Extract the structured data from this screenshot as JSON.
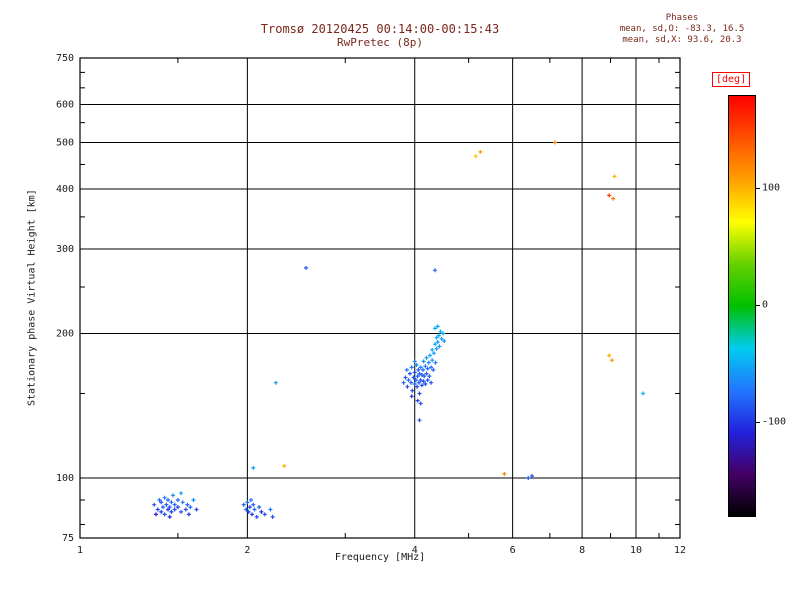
{
  "title": "Tromsø 20120425 00:14:00-00:15:43",
  "subtitle": "RwPretec (8p)",
  "phases_box": {
    "heading": "Phases",
    "line_o": "mean, sd,O: -83.3, 16.5",
    "line_x": "mean, sd,X:  93.6, 20.3"
  },
  "colorbar": {
    "label": "[deg]",
    "min": -180,
    "max": 180,
    "ticks": [
      100,
      0,
      -100
    ],
    "stops": [
      {
        "t": 0.0,
        "c": "#000000"
      },
      {
        "t": 0.1,
        "c": "#440066"
      },
      {
        "t": 0.2,
        "c": "#2222dd"
      },
      {
        "t": 0.3,
        "c": "#2277ff"
      },
      {
        "t": 0.4,
        "c": "#00ccee"
      },
      {
        "t": 0.5,
        "c": "#00c000"
      },
      {
        "t": 0.6,
        "c": "#66d000"
      },
      {
        "t": 0.7,
        "c": "#ffff00"
      },
      {
        "t": 0.8,
        "c": "#ffa000"
      },
      {
        "t": 0.9,
        "c": "#ff5000"
      },
      {
        "t": 1.0,
        "c": "#ff0000"
      }
    ]
  },
  "chart_data": {
    "type": "scatter",
    "title": "Tromsø 20120425 00:14:00-00:15:43",
    "subtitle": "RwPretec (8p)",
    "xlabel": "Frequency [MHz]",
    "ylabel": "Stationary phase Virtual Height [km]",
    "xscale": "log",
    "yscale": "log",
    "xlim": [
      1,
      12
    ],
    "ylim": [
      75,
      750
    ],
    "xticks": [
      1,
      2,
      4,
      6,
      8,
      10,
      12
    ],
    "yticks": [
      75,
      100,
      200,
      300,
      400,
      500,
      600,
      750
    ],
    "xminor": [
      1.5,
      3,
      5,
      7,
      9,
      11
    ],
    "yminor": [
      80,
      90,
      150,
      250,
      350,
      450,
      550,
      650,
      700
    ],
    "grid": true,
    "color_value": "phase [deg]",
    "color_range": [
      -180,
      180
    ],
    "points": [
      [
        1.36,
        88,
        -85
      ],
      [
        1.38,
        86,
        -92
      ],
      [
        1.39,
        90,
        -78
      ],
      [
        1.4,
        85,
        -95
      ],
      [
        1.4,
        89,
        -88
      ],
      [
        1.41,
        87,
        -82
      ],
      [
        1.42,
        91,
        -70
      ],
      [
        1.42,
        84,
        -92
      ],
      [
        1.43,
        88,
        -86
      ],
      [
        1.44,
        86,
        -100
      ],
      [
        1.44,
        90,
        -80
      ],
      [
        1.45,
        87,
        -88
      ],
      [
        1.46,
        85,
        -94
      ],
      [
        1.46,
        89,
        -75
      ],
      [
        1.47,
        92,
        -60
      ],
      [
        1.48,
        86,
        -90
      ],
      [
        1.48,
        88,
        -84
      ],
      [
        1.5,
        87,
        -96
      ],
      [
        1.5,
        90,
        -82
      ],
      [
        1.52,
        85,
        -88
      ],
      [
        1.53,
        89,
        -70
      ],
      [
        1.55,
        86,
        -92
      ],
      [
        1.56,
        88,
        -85
      ],
      [
        1.58,
        87,
        -78
      ],
      [
        1.6,
        90,
        -65
      ],
      [
        1.62,
        86,
        -90
      ],
      [
        1.45,
        83,
        -105
      ],
      [
        1.52,
        93,
        -55
      ],
      [
        1.37,
        84,
        -110
      ],
      [
        1.57,
        84,
        -98
      ],
      [
        1.97,
        88,
        -85
      ],
      [
        1.99,
        86,
        -90
      ],
      [
        2.0,
        89,
        -80
      ],
      [
        2.01,
        85,
        -88
      ],
      [
        2.02,
        87,
        -92
      ],
      [
        2.03,
        90,
        -75
      ],
      [
        2.04,
        84,
        -95
      ],
      [
        2.05,
        88,
        -85
      ],
      [
        2.06,
        86,
        -80
      ],
      [
        2.08,
        83,
        -90
      ],
      [
        2.1,
        87,
        -85
      ],
      [
        2.12,
        85,
        -100
      ],
      [
        2.15,
        84,
        -88
      ],
      [
        2.2,
        86,
        -70
      ],
      [
        2.05,
        105,
        -55
      ],
      [
        2.22,
        83,
        -90
      ],
      [
        3.82,
        158,
        -80
      ],
      [
        3.85,
        162,
        -85
      ],
      [
        3.88,
        155,
        -90
      ],
      [
        3.9,
        160,
        -75
      ],
      [
        3.92,
        165,
        -88
      ],
      [
        3.94,
        158,
        -82
      ],
      [
        3.95,
        170,
        -70
      ],
      [
        3.96,
        152,
        -92
      ],
      [
        3.98,
        162,
        -85
      ],
      [
        4.0,
        157,
        -78
      ],
      [
        4.0,
        166,
        -90
      ],
      [
        4.02,
        160,
        -84
      ],
      [
        4.03,
        172,
        -65
      ],
      [
        4.04,
        155,
        -95
      ],
      [
        4.05,
        163,
        -88
      ],
      [
        4.06,
        168,
        -80
      ],
      [
        4.07,
        158,
        -86
      ],
      [
        4.08,
        150,
        -92
      ],
      [
        4.08,
        165,
        -75
      ],
      [
        4.1,
        160,
        -85
      ],
      [
        4.1,
        170,
        -68
      ],
      [
        4.12,
        156,
        -90
      ],
      [
        4.12,
        164,
        -82
      ],
      [
        4.14,
        168,
        -78
      ],
      [
        4.15,
        159,
        -88
      ],
      [
        4.15,
        175,
        -60
      ],
      [
        4.16,
        163,
        -85
      ],
      [
        4.18,
        157,
        -92
      ],
      [
        4.18,
        171,
        -72
      ],
      [
        4.2,
        165,
        -84
      ],
      [
        4.2,
        178,
        -58
      ],
      [
        4.22,
        160,
        -88
      ],
      [
        4.22,
        169,
        -76
      ],
      [
        4.24,
        174,
        -66
      ],
      [
        4.25,
        163,
        -86
      ],
      [
        4.26,
        180,
        -55
      ],
      [
        4.28,
        170,
        -74
      ],
      [
        4.28,
        158,
        -90
      ],
      [
        4.3,
        176,
        -62
      ],
      [
        4.3,
        185,
        -50
      ],
      [
        4.32,
        168,
        -80
      ],
      [
        4.33,
        182,
        -58
      ],
      [
        4.35,
        190,
        -52
      ],
      [
        4.36,
        174,
        -70
      ],
      [
        4.38,
        186,
        -60
      ],
      [
        4.38,
        196,
        -48
      ],
      [
        4.4,
        192,
        -55
      ],
      [
        4.42,
        198,
        -50
      ],
      [
        4.43,
        188,
        -62
      ],
      [
        4.45,
        202,
        -45
      ],
      [
        4.47,
        195,
        -55
      ],
      [
        4.5,
        200,
        -50
      ],
      [
        4.35,
        205,
        -48
      ],
      [
        4.4,
        207,
        -52
      ],
      [
        4.05,
        145,
        -95
      ],
      [
        3.95,
        148,
        -100
      ],
      [
        4.1,
        143,
        -90
      ],
      [
        4.52,
        193,
        -58
      ],
      [
        3.87,
        168,
        -72
      ],
      [
        4.0,
        175,
        -64
      ],
      [
        4.08,
        132,
        -88
      ],
      [
        2.25,
        158,
        -55
      ],
      [
        2.55,
        274,
        -85
      ],
      [
        4.35,
        271,
        -80
      ],
      [
        2.33,
        106,
        100
      ],
      [
        5.15,
        468,
        95
      ],
      [
        5.25,
        478,
        110
      ],
      [
        7.15,
        500,
        120
      ],
      [
        9.15,
        425,
        100
      ],
      [
        8.95,
        388,
        155
      ],
      [
        9.1,
        382,
        125
      ],
      [
        8.95,
        180,
        105
      ],
      [
        9.05,
        176,
        115
      ],
      [
        10.3,
        150,
        -45
      ],
      [
        6.4,
        100,
        -85
      ],
      [
        6.5,
        101,
        -90
      ],
      [
        5.8,
        102,
        120
      ]
    ]
  }
}
